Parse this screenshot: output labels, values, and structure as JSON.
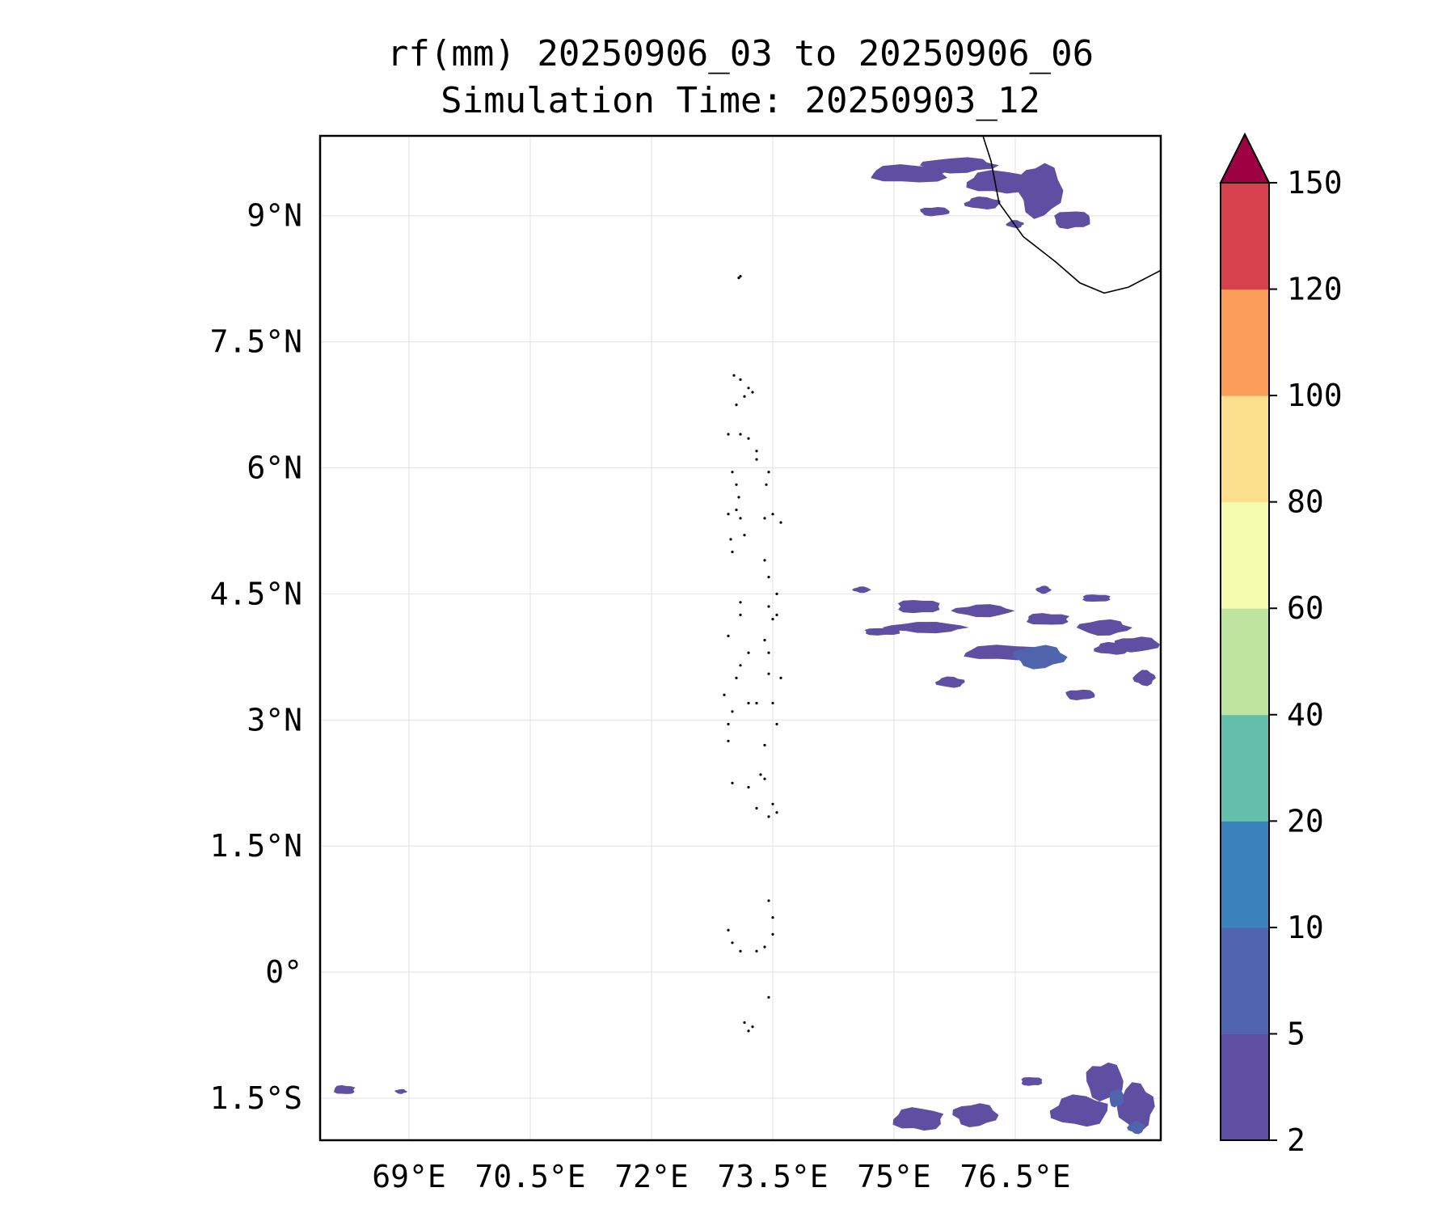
{
  "title": {
    "line1": "rf(mm) 20250906_03 to 20250906_06",
    "line2": "Simulation Time: 20250903_12"
  },
  "map": {
    "lon_range": [
      67.9,
      78.3
    ],
    "lat_range": [
      -2.0,
      9.95
    ],
    "x_ticks": [
      {
        "value": 69.0,
        "label": "69°E"
      },
      {
        "value": 70.5,
        "label": "70.5°E"
      },
      {
        "value": 72.0,
        "label": "72°E"
      },
      {
        "value": 73.5,
        "label": "73.5°E"
      },
      {
        "value": 75.0,
        "label": "75°E"
      },
      {
        "value": 76.5,
        "label": "76.5°E"
      }
    ],
    "y_ticks": [
      {
        "value": 9.0,
        "label": "9°N"
      },
      {
        "value": 7.5,
        "label": "7.5°N"
      },
      {
        "value": 6.0,
        "label": "6°N"
      },
      {
        "value": 4.5,
        "label": "4.5°N"
      },
      {
        "value": 3.0,
        "label": "3°N"
      },
      {
        "value": 1.5,
        "label": "1.5°N"
      },
      {
        "value": 0.0,
        "label": "0°"
      },
      {
        "value": -1.5,
        "label": "1.5°S"
      }
    ],
    "gridlines": true,
    "coastline_color": "#000000",
    "rain_areas": [
      {
        "lon": 75.2,
        "lat": 9.5,
        "rx": 0.55,
        "ry": 0.12,
        "level": 0
      },
      {
        "lon": 75.8,
        "lat": 9.6,
        "rx": 0.5,
        "ry": 0.1,
        "level": 0
      },
      {
        "lon": 76.3,
        "lat": 9.4,
        "rx": 0.45,
        "ry": 0.15,
        "level": 0
      },
      {
        "lon": 76.8,
        "lat": 9.3,
        "rx": 0.3,
        "ry": 0.35,
        "level": 0
      },
      {
        "lon": 76.1,
        "lat": 9.15,
        "rx": 0.25,
        "ry": 0.08,
        "level": 0
      },
      {
        "lon": 75.5,
        "lat": 9.05,
        "rx": 0.2,
        "ry": 0.06,
        "level": 0
      },
      {
        "lon": 76.5,
        "lat": 8.9,
        "rx": 0.12,
        "ry": 0.05,
        "level": 0
      },
      {
        "lon": 77.2,
        "lat": 8.95,
        "rx": 0.25,
        "ry": 0.12,
        "level": 0
      },
      {
        "lon": 75.4,
        "lat": 4.1,
        "rx": 0.55,
        "ry": 0.07,
        "level": 0
      },
      {
        "lon": 75.3,
        "lat": 4.35,
        "rx": 0.3,
        "ry": 0.09,
        "level": 0
      },
      {
        "lon": 76.1,
        "lat": 4.3,
        "rx": 0.4,
        "ry": 0.08,
        "level": 0
      },
      {
        "lon": 76.9,
        "lat": 4.2,
        "rx": 0.3,
        "ry": 0.08,
        "level": 0
      },
      {
        "lon": 77.6,
        "lat": 4.1,
        "rx": 0.35,
        "ry": 0.1,
        "level": 0
      },
      {
        "lon": 76.4,
        "lat": 3.8,
        "rx": 0.6,
        "ry": 0.1,
        "level": 0
      },
      {
        "lon": 76.8,
        "lat": 3.75,
        "rx": 0.35,
        "ry": 0.15,
        "level": 1
      },
      {
        "lon": 77.7,
        "lat": 3.85,
        "rx": 0.25,
        "ry": 0.08,
        "level": 0
      },
      {
        "lon": 78.0,
        "lat": 3.9,
        "rx": 0.3,
        "ry": 0.1,
        "level": 0
      },
      {
        "lon": 75.7,
        "lat": 3.45,
        "rx": 0.2,
        "ry": 0.07,
        "level": 0
      },
      {
        "lon": 77.3,
        "lat": 3.3,
        "rx": 0.2,
        "ry": 0.07,
        "level": 0
      },
      {
        "lon": 78.1,
        "lat": 3.5,
        "rx": 0.15,
        "ry": 0.1,
        "level": 0
      },
      {
        "lon": 74.85,
        "lat": 4.05,
        "rx": 0.25,
        "ry": 0.05,
        "level": 0
      },
      {
        "lon": 74.6,
        "lat": 4.55,
        "rx": 0.12,
        "ry": 0.04,
        "level": 0
      },
      {
        "lon": 77.5,
        "lat": 4.45,
        "rx": 0.2,
        "ry": 0.05,
        "level": 0
      },
      {
        "lon": 76.85,
        "lat": 4.55,
        "rx": 0.1,
        "ry": 0.05,
        "level": 0
      },
      {
        "lon": 68.2,
        "lat": -1.4,
        "rx": 0.15,
        "ry": 0.06,
        "level": 0
      },
      {
        "lon": 68.9,
        "lat": -1.42,
        "rx": 0.08,
        "ry": 0.03,
        "level": 0
      },
      {
        "lon": 75.3,
        "lat": -1.75,
        "rx": 0.35,
        "ry": 0.15,
        "level": 0
      },
      {
        "lon": 76.0,
        "lat": -1.7,
        "rx": 0.3,
        "ry": 0.15,
        "level": 0
      },
      {
        "lon": 77.3,
        "lat": -1.65,
        "rx": 0.4,
        "ry": 0.2,
        "level": 0
      },
      {
        "lon": 77.6,
        "lat": -1.3,
        "rx": 0.25,
        "ry": 0.25,
        "level": 0
      },
      {
        "lon": 78.0,
        "lat": -1.6,
        "rx": 0.25,
        "ry": 0.3,
        "level": 0
      },
      {
        "lon": 77.75,
        "lat": -1.5,
        "rx": 0.1,
        "ry": 0.12,
        "level": 1
      },
      {
        "lon": 78.0,
        "lat": -1.85,
        "rx": 0.12,
        "ry": 0.08,
        "level": 1
      },
      {
        "lon": 76.7,
        "lat": -1.3,
        "rx": 0.15,
        "ry": 0.06,
        "level": 0
      }
    ]
  },
  "colorbar": {
    "levels": [
      2,
      5,
      10,
      20,
      40,
      60,
      80,
      100,
      120,
      150
    ],
    "colors": [
      "#5e4fa2",
      "#4f64ad",
      "#3a82bb",
      "#63beab",
      "#bee4a0",
      "#f4fbae",
      "#fbdf8d",
      "#f99d59",
      "#d6414e"
    ],
    "extend_color": "#9e0142",
    "tick_labels": [
      "2",
      "5",
      "10",
      "20",
      "40",
      "60",
      "80",
      "100",
      "120",
      "150"
    ]
  }
}
